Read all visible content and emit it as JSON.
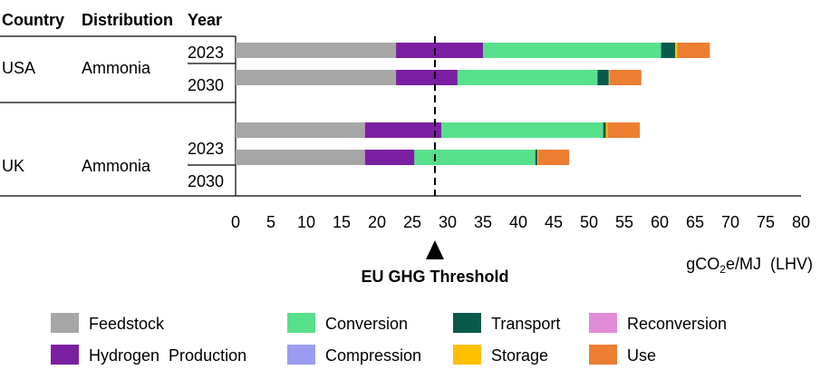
{
  "table_headers": {
    "country": "Country",
    "distribution": "Distribution",
    "year": "Year"
  },
  "groups": [
    {
      "country": "USA",
      "distribution": "Ammonia",
      "years": [
        "2023",
        "2030"
      ]
    },
    {
      "country": "UK",
      "distribution": "Ammonia",
      "years": [
        "2023",
        "2030"
      ]
    }
  ],
  "chart_data": {
    "type": "bar",
    "orientation": "horizontal",
    "stacked": true,
    "xlim": [
      0,
      80
    ],
    "xticks": [
      0,
      5,
      10,
      15,
      20,
      25,
      30,
      35,
      40,
      45,
      50,
      55,
      60,
      65,
      70,
      75,
      80
    ],
    "xlabel": "gCO2e/MJ (LHV)",
    "bars": [
      {
        "components": {
          "Feedstock": 22.7,
          "Hydrogen Production": 12.3,
          "Conversion": 25.2,
          "Transport": 2.0,
          "Storage": 0.3,
          "Use": 4.6
        }
      },
      {
        "components": {
          "Feedstock": 22.7,
          "Hydrogen Production": 8.7,
          "Conversion": 19.8,
          "Transport": 1.6,
          "Storage": 0.1,
          "Use": 4.5
        }
      },
      {
        "components": {
          "Feedstock": 18.3,
          "Hydrogen Production": 10.8,
          "Conversion": 22.9,
          "Transport": 0.4,
          "Storage": 0.2,
          "Use": 4.6
        }
      },
      {
        "components": {
          "Feedstock": 18.3,
          "Hydrogen Production": 7.0,
          "Conversion": 17.1,
          "Transport": 0.3,
          "Storage": 0.1,
          "Use": 4.4
        }
      }
    ],
    "threshold": {
      "label": "EU GHG Threshold",
      "value": 28.2
    },
    "legend": {
      "position": "bottom",
      "items": [
        {
          "name": "Feedstock",
          "color": "#a6a6a6"
        },
        {
          "name": "Hydrogen  Production",
          "color": "#7b1fa2"
        },
        {
          "name": "Conversion",
          "color": "#57e08c"
        },
        {
          "name": "Compression",
          "color": "#9b9cf0"
        },
        {
          "name": "Transport",
          "color": "#0a5a4c"
        },
        {
          "name": "Storage",
          "color": "#ffc000"
        },
        {
          "name": "Reconversion",
          "color": "#e18cd6"
        },
        {
          "name": "Use",
          "color": "#ed7d31"
        }
      ]
    }
  }
}
